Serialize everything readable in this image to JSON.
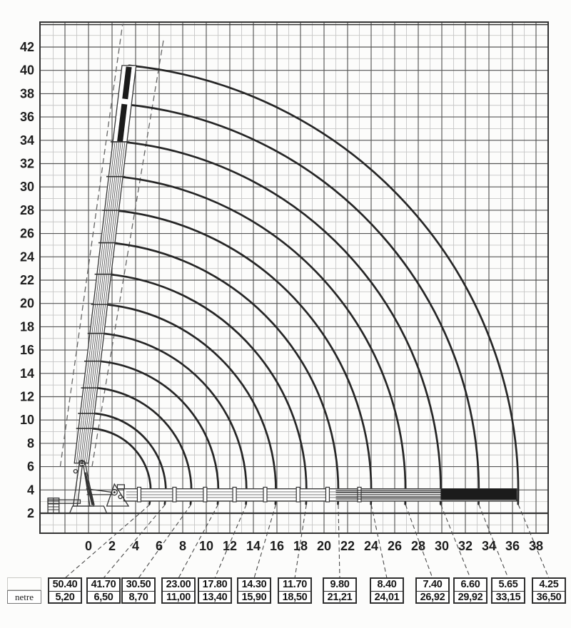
{
  "axes": {
    "x_ticks": [
      "0",
      "2",
      "4",
      "6",
      "8",
      "10",
      "12",
      "14",
      "16",
      "18",
      "20",
      "22",
      "24",
      "26",
      "28",
      "30",
      "32",
      "34",
      "36",
      "38"
    ],
    "y_ticks": [
      "42",
      "40",
      "38",
      "36",
      "34",
      "32",
      "30",
      "28",
      "26",
      "24",
      "22",
      "20",
      "18",
      "16",
      "14",
      "12",
      "10",
      "8",
      "6",
      "4",
      "2"
    ]
  },
  "table": {
    "unit_label": "netre",
    "columns": [
      {
        "capacity": "50.40",
        "radius": "5,20"
      },
      {
        "capacity": "41.70",
        "radius": "6,50"
      },
      {
        "capacity": "30.50",
        "radius": "8,70"
      },
      {
        "capacity": "23.00",
        "radius": "11,00"
      },
      {
        "capacity": "17.80",
        "radius": "13,40"
      },
      {
        "capacity": "14.30",
        "radius": "15,90"
      },
      {
        "capacity": "11.70",
        "radius": "18,50"
      },
      {
        "capacity": "9.80",
        "radius": "21,21"
      },
      {
        "capacity": "8.40",
        "radius": "24,01"
      },
      {
        "capacity": "7.40",
        "radius": "26,92"
      },
      {
        "capacity": "6.60",
        "radius": "29,92"
      },
      {
        "capacity": "5.65",
        "radius": "33,15"
      },
      {
        "capacity": "4.25",
        "radius": "36,50"
      }
    ]
  },
  "chart_data": {
    "type": "line",
    "description": "Telescopic crane working-range diagram: boom-tip luffing arcs from max boom angle (~84 deg) down to ground level, one arc per telescope extension; bottom table pairs each curve's top value with its outreach radius in metres",
    "x_ticks": [
      0,
      2,
      4,
      6,
      8,
      10,
      12,
      14,
      16,
      18,
      20,
      22,
      24,
      26,
      28,
      30,
      32,
      34,
      36,
      38
    ],
    "y_ticks": [
      2,
      4,
      6,
      8,
      10,
      12,
      14,
      16,
      18,
      20,
      22,
      24,
      26,
      28,
      30,
      32,
      34,
      36,
      38,
      40,
      42
    ],
    "x_range": [
      -4.1,
      39.0
    ],
    "y_range": [
      0.3,
      44.0
    ],
    "grid": "minor every 1 unit, major every 2 units",
    "boom_max_angle_deg": 84,
    "arcs": [
      {
        "top_value": 50.4,
        "radius_m": 5.2
      },
      {
        "top_value": 41.7,
        "radius_m": 6.5
      },
      {
        "top_value": 30.5,
        "radius_m": 8.7
      },
      {
        "top_value": 23.0,
        "radius_m": 11.0
      },
      {
        "top_value": 17.8,
        "radius_m": 13.4
      },
      {
        "top_value": 14.3,
        "radius_m": 15.9
      },
      {
        "top_value": 11.7,
        "radius_m": 18.5
      },
      {
        "top_value": 9.8,
        "radius_m": 21.21
      },
      {
        "top_value": 8.4,
        "radius_m": 24.01
      },
      {
        "top_value": 7.4,
        "radius_m": 26.92
      },
      {
        "top_value": 6.6,
        "radius_m": 29.92
      },
      {
        "top_value": 5.65,
        "radius_m": 33.15
      },
      {
        "top_value": 4.25,
        "radius_m": 36.5
      }
    ],
    "colors": {
      "curve": "#262626",
      "grid_major": "#555555",
      "grid_minor": "#c6c6c6",
      "boom_black": "#1b1b1b"
    }
  }
}
